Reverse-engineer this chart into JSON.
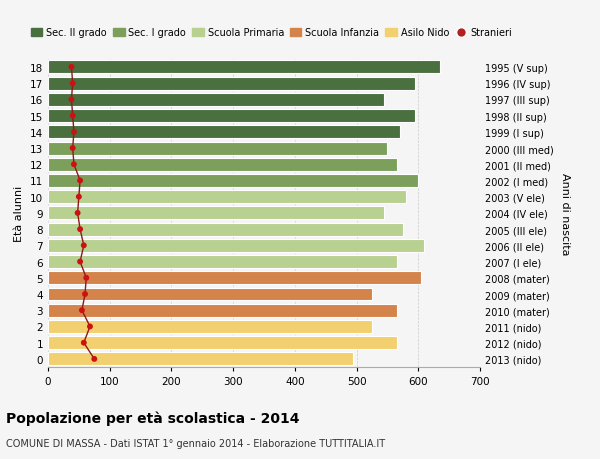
{
  "ages": [
    18,
    17,
    16,
    15,
    14,
    13,
    12,
    11,
    10,
    9,
    8,
    7,
    6,
    5,
    4,
    3,
    2,
    1,
    0
  ],
  "right_labels": [
    "1995 (V sup)",
    "1996 (IV sup)",
    "1997 (III sup)",
    "1998 (II sup)",
    "1999 (I sup)",
    "2000 (III med)",
    "2001 (II med)",
    "2002 (I med)",
    "2003 (V ele)",
    "2004 (IV ele)",
    "2005 (III ele)",
    "2006 (II ele)",
    "2007 (I ele)",
    "2008 (mater)",
    "2009 (mater)",
    "2010 (mater)",
    "2011 (nido)",
    "2012 (nido)",
    "2013 (nido)"
  ],
  "bar_values": [
    635,
    595,
    545,
    595,
    570,
    550,
    565,
    600,
    580,
    545,
    575,
    610,
    565,
    605,
    525,
    565,
    525,
    565,
    495
  ],
  "bar_colors": [
    "#4a7040",
    "#4a7040",
    "#4a7040",
    "#4a7040",
    "#4a7040",
    "#7ca05c",
    "#7ca05c",
    "#7ca05c",
    "#b8d090",
    "#b8d090",
    "#b8d090",
    "#b8d090",
    "#b8d090",
    "#d4844a",
    "#d4844a",
    "#d4844a",
    "#f2d070",
    "#f2d070",
    "#f2d070"
  ],
  "stranieri_values": [
    38,
    40,
    38,
    40,
    42,
    40,
    42,
    52,
    50,
    48,
    52,
    58,
    52,
    62,
    60,
    55,
    68,
    58,
    75
  ],
  "legend_labels": [
    "Sec. II grado",
    "Sec. I grado",
    "Scuola Primaria",
    "Scuola Infanzia",
    "Asilo Nido",
    "Stranieri"
  ],
  "legend_colors": [
    "#4a7040",
    "#7ca05c",
    "#b8d090",
    "#d4844a",
    "#f2d070",
    "#b22222"
  ],
  "ylabel_left": "Età alunni",
  "ylabel_right": "Anni di nascita",
  "title": "Popolazione per età scolastica - 2014",
  "subtitle": "COMUNE DI MASSA - Dati ISTAT 1° gennaio 2014 - Elaborazione TUTTITALIA.IT",
  "xlim": [
    0,
    700
  ],
  "background_color": "#f5f5f5"
}
